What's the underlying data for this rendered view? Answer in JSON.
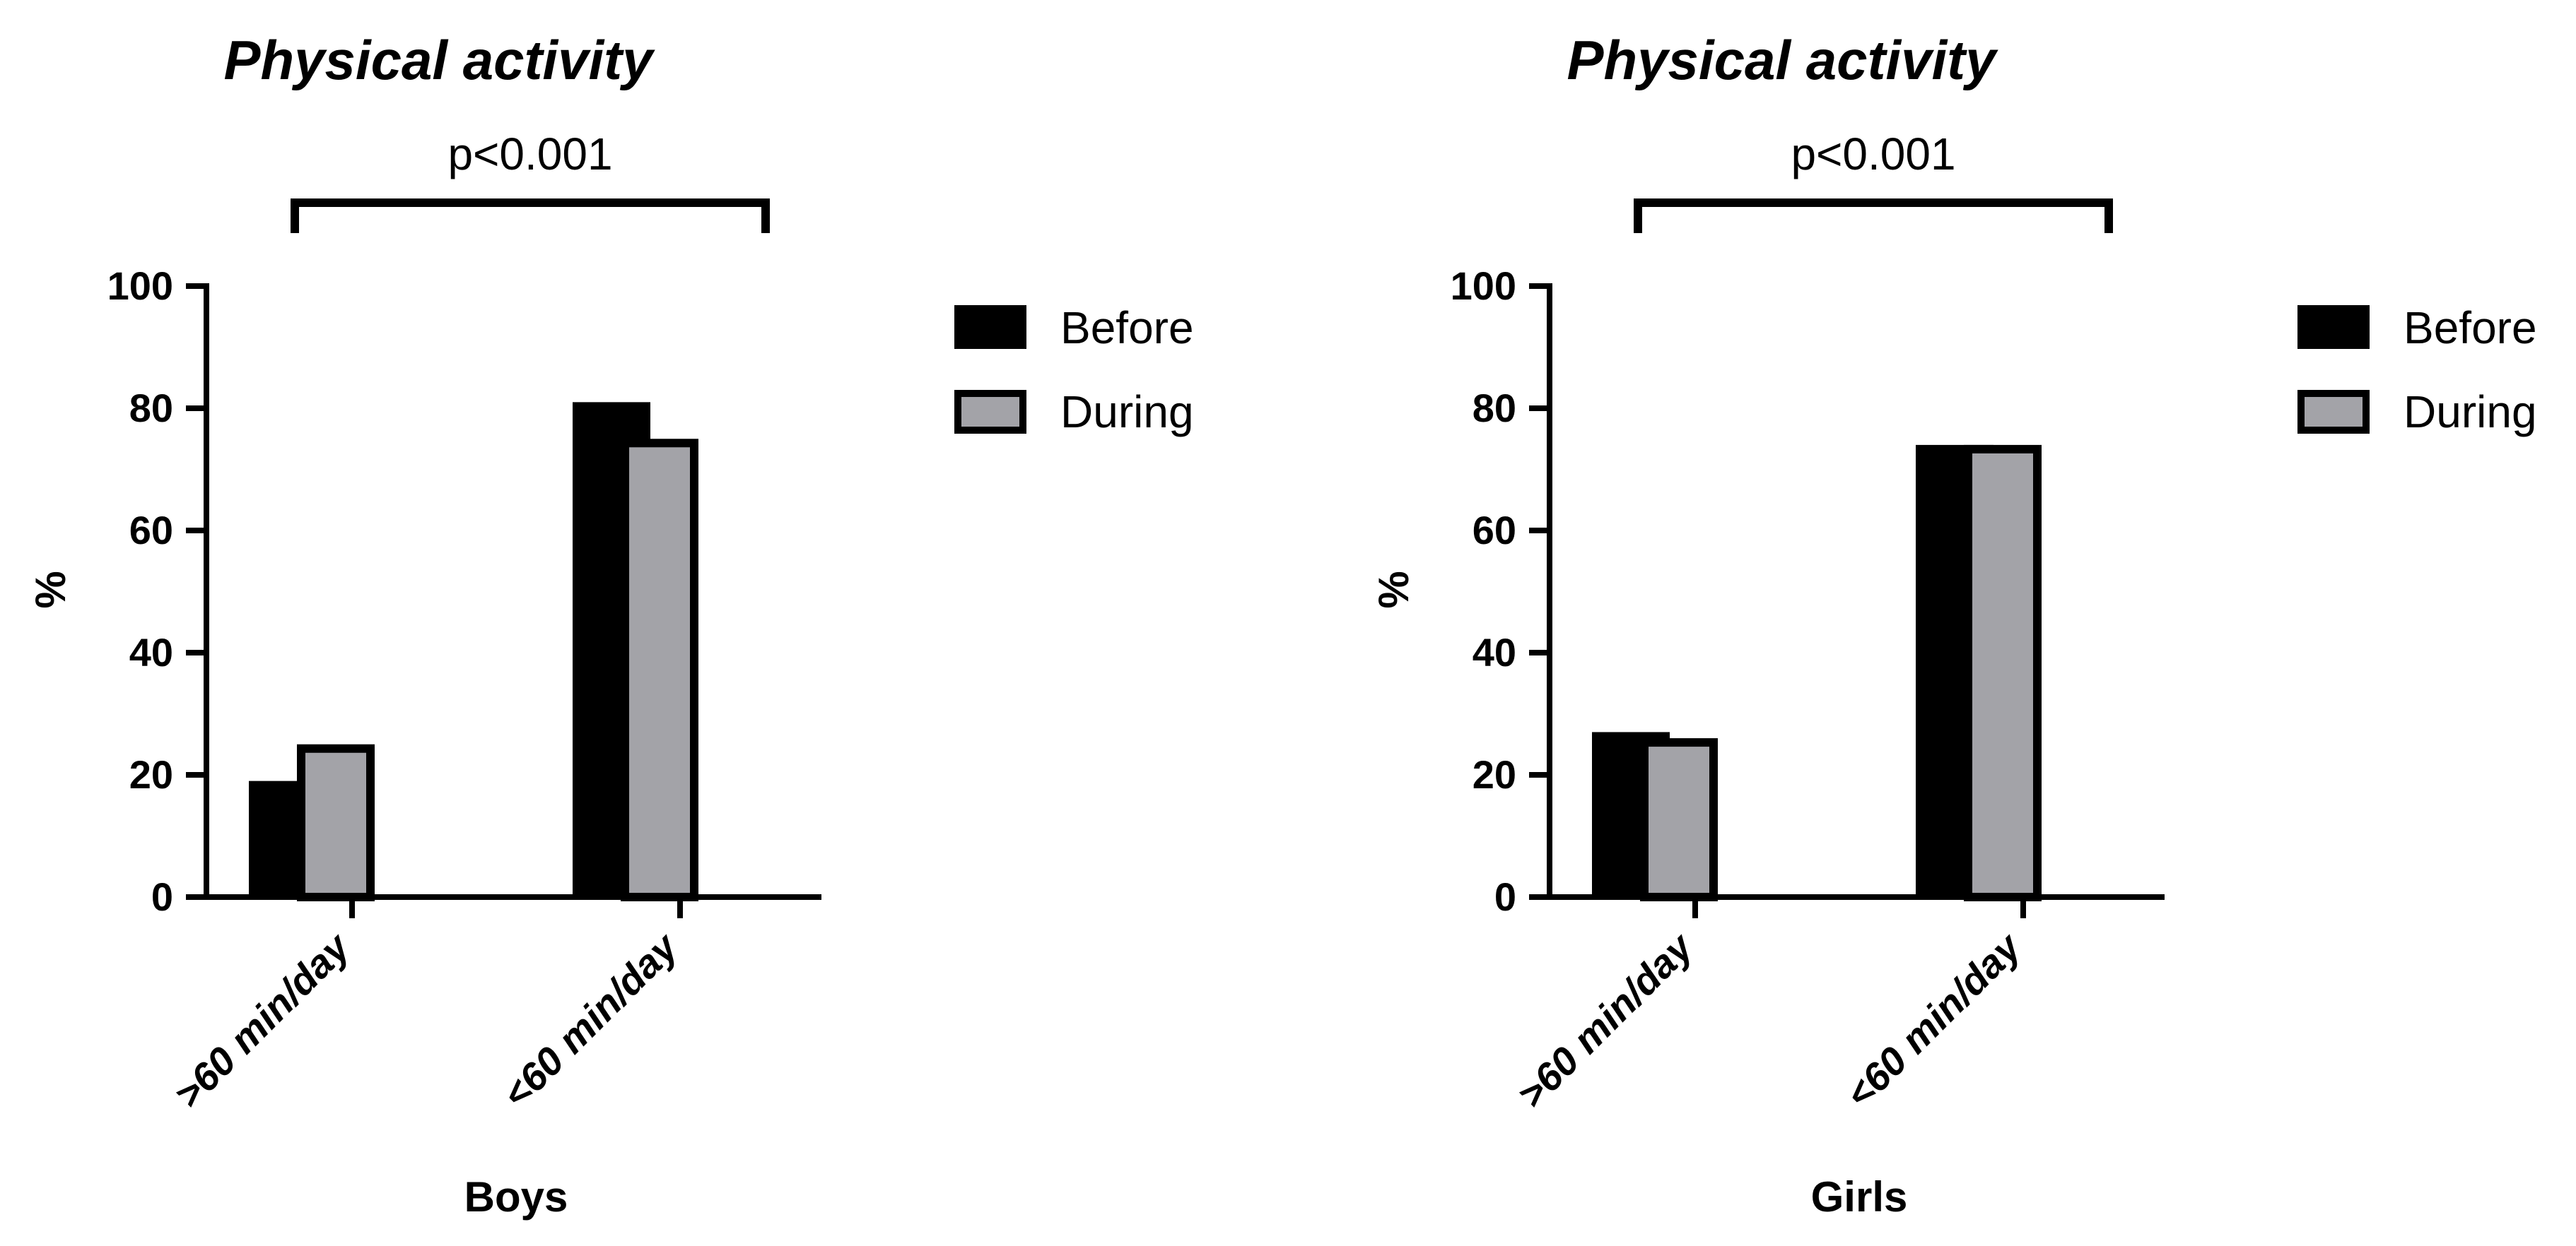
{
  "chart_data": [
    {
      "type": "bar",
      "title": "Physical activity",
      "significance": "p<0.001",
      "xlabel": "Boys",
      "ylabel": "%",
      "ylim": [
        0,
        100
      ],
      "yticks": [
        "0",
        "20",
        "40",
        "60",
        "80",
        "100"
      ],
      "categories": [
        ">60 min/day",
        "<60 min/day"
      ],
      "series": [
        {
          "name": "Before",
          "values": [
            19,
            81
          ],
          "color": "#000000"
        },
        {
          "name": "During",
          "values": [
            25,
            75
          ],
          "color": "#a3a3a8"
        }
      ],
      "legend": [
        "Before",
        "During"
      ],
      "legend_position": "right"
    },
    {
      "type": "bar",
      "title": "Physical activity",
      "significance": "p<0.001",
      "xlabel": "Girls",
      "ylabel": "%",
      "ylim": [
        0,
        100
      ],
      "yticks": [
        "0",
        "20",
        "40",
        "60",
        "80",
        "100"
      ],
      "categories": [
        ">60 min/day",
        "<60 min/day"
      ],
      "series": [
        {
          "name": "Before",
          "values": [
            27,
            74
          ],
          "color": "#000000"
        },
        {
          "name": "During",
          "values": [
            26,
            74
          ],
          "color": "#a3a3a8"
        }
      ],
      "legend": [
        "Before",
        "During"
      ],
      "legend_position": "right"
    }
  ]
}
